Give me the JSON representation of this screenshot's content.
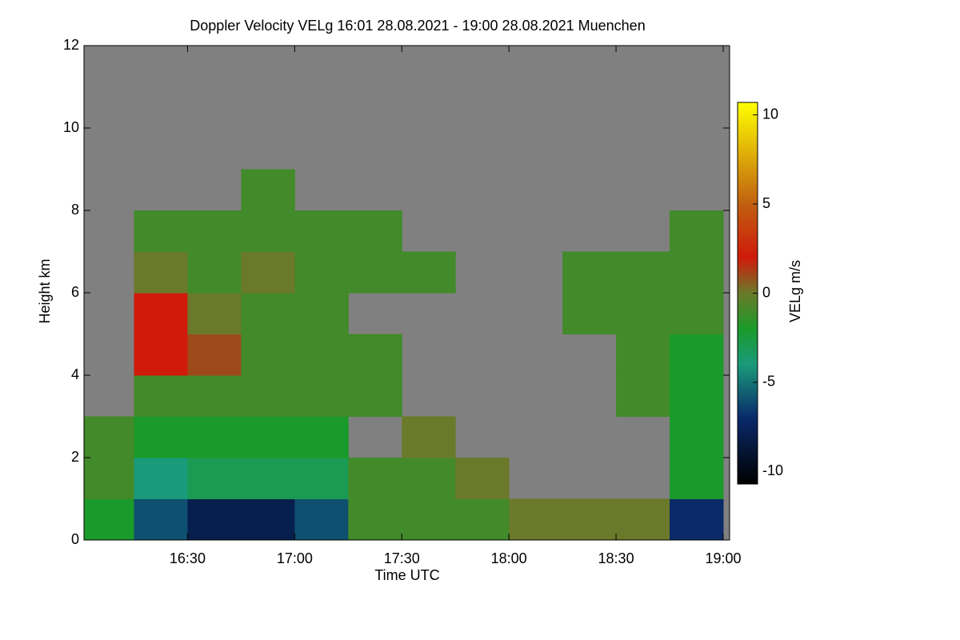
{
  "chart_data": {
    "type": "heatmap",
    "title": "Doppler Velocity VELg   16:01 28.08.2021 - 19:00 28.08.2021 Muenchen",
    "xlabel": "Time UTC",
    "ylabel": "Height km",
    "colorbar_label": "VELg m/s",
    "xlim": [
      16.0167,
      19.03
    ],
    "xticks": [
      {
        "value": 16.5,
        "label": "16:30"
      },
      {
        "value": 17,
        "label": "17:00"
      },
      {
        "value": 17.5,
        "label": "17:30"
      },
      {
        "value": 18,
        "label": "18:00"
      },
      {
        "value": 18.5,
        "label": "18:30"
      },
      {
        "value": 19,
        "label": "19:00"
      }
    ],
    "ylim": [
      0,
      12
    ],
    "yticks": [
      0,
      2,
      4,
      6,
      8,
      10,
      12
    ],
    "clim": [
      -10.7,
      10.7
    ],
    "cticks": [
      -10,
      -5,
      0,
      5,
      10
    ],
    "background": "#808080",
    "colormap": [
      {
        "value": -10.7,
        "color": "#000000"
      },
      {
        "value": -7,
        "color": "#0a2a6a"
      },
      {
        "value": -4,
        "color": "#1a9a7a"
      },
      {
        "value": -2,
        "color": "#1a9a2a"
      },
      {
        "value": 0,
        "color": "#6a7a2a"
      },
      {
        "value": 2,
        "color": "#d01a0a"
      },
      {
        "value": 5,
        "color": "#c06010"
      },
      {
        "value": 10.7,
        "color": "#ffff00"
      }
    ],
    "x_edges": [
      16.0167,
      16.25,
      16.5,
      16.75,
      17,
      17.25,
      17.5,
      17.75,
      18,
      18.25,
      18.5,
      18.75,
      19
    ],
    "y_edges": [
      0,
      1,
      2,
      3,
      4,
      5,
      6,
      7,
      8,
      9
    ],
    "z": [
      [
        -2,
        -6,
        -8,
        -8,
        -6,
        -1,
        -1,
        -1,
        0,
        0,
        0,
        -7
      ],
      [
        -1,
        -4,
        -3,
        -3,
        -3,
        -1,
        -1,
        0,
        null,
        null,
        null,
        -2
      ],
      [
        -1,
        -2,
        -2,
        -2,
        -2,
        null,
        0,
        null,
        null,
        null,
        null,
        -2
      ],
      [
        null,
        -1,
        -1,
        -1,
        -1,
        -1,
        null,
        null,
        null,
        null,
        -1,
        -2
      ],
      [
        null,
        2,
        1,
        -1,
        -1,
        -1,
        null,
        null,
        null,
        null,
        -1,
        -2
      ],
      [
        null,
        2,
        0,
        -1,
        -1,
        null,
        null,
        null,
        null,
        -1,
        -1,
        -1
      ],
      [
        null,
        0,
        -1,
        0,
        -1,
        -1,
        -1,
        null,
        null,
        -1,
        -1,
        -1
      ],
      [
        null,
        -1,
        -1,
        -1,
        -1,
        -1,
        null,
        null,
        null,
        null,
        null,
        -1
      ],
      [
        null,
        null,
        null,
        -1,
        null,
        null,
        null,
        null,
        null,
        null,
        null,
        null
      ]
    ]
  }
}
